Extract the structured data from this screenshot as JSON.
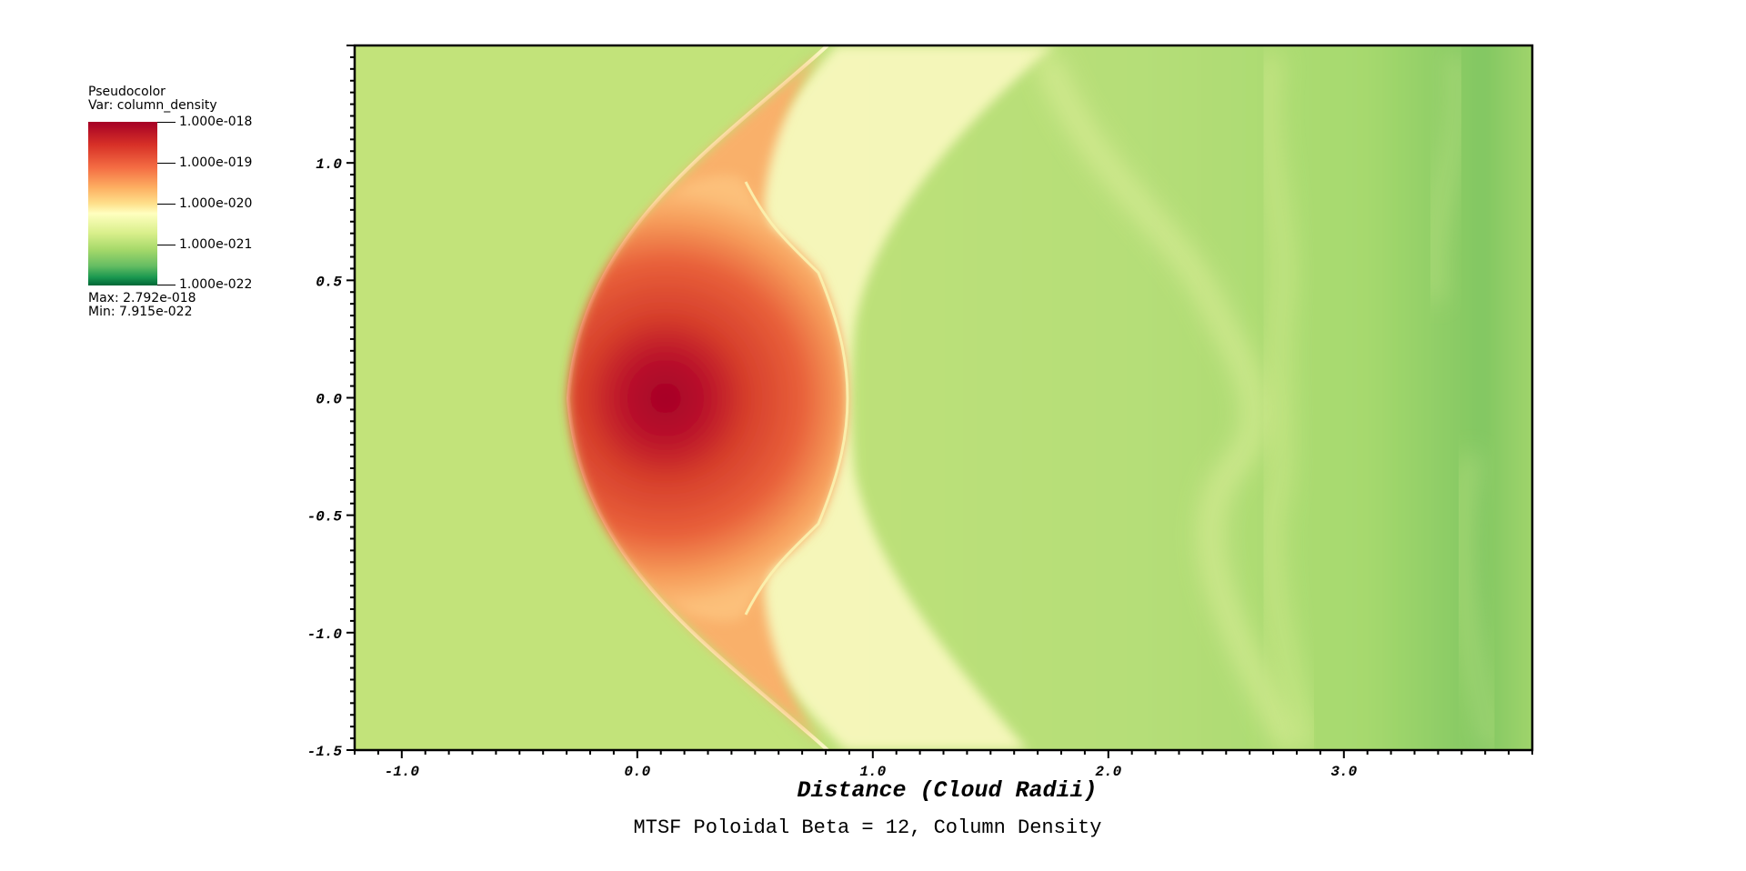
{
  "legend": {
    "plot_type": "Pseudocolor",
    "variable": "Var: column_density",
    "tick_labels": [
      "1.000e-018",
      "1.000e-019",
      "1.000e-020",
      "1.000e-021",
      "1.000e-022"
    ],
    "max_label": "Max:  2.792e-018",
    "min_label": "Min:  7.915e-022",
    "colors": [
      "#a50026",
      "#e34a33",
      "#fdae61",
      "#ffffbf",
      "#c2e37a",
      "#7dc462",
      "#006837"
    ]
  },
  "chart_data": {
    "type": "heatmap",
    "title": "MTSF Poloidal Beta = 12, Column Density",
    "xlabel": "Distance (Cloud Radii)",
    "ylabel": "",
    "xlim": [
      -1.2,
      3.8
    ],
    "ylim": [
      -1.5,
      1.5
    ],
    "x_ticks": [
      -1.0,
      0.0,
      1.0,
      2.0,
      3.0
    ],
    "x_tick_labels": [
      "-1.0",
      "0.0",
      "1.0",
      "2.0",
      "3.0"
    ],
    "y_ticks": [
      1.0,
      0.5,
      0.0,
      -0.5,
      -1.0,
      -1.5
    ],
    "y_tick_labels": [
      "1.0",
      "0.5",
      "0.0",
      "-0.5",
      "-1.0",
      "-1.5"
    ],
    "color_scale": "log",
    "value_range": [
      1e-22,
      1e-18
    ],
    "field_features": {
      "ambient_value": 3e-21,
      "cloud_core_center": [
        0.12,
        0.0
      ],
      "cloud_core_value": 2.792e-18,
      "bow_shock_apex_x": -0.28,
      "cloud_edge_x": 0.85,
      "wake_tail_x": 3.8
    },
    "colors": {
      "ambient": "#c2e37a",
      "core": "#a50026",
      "shell": "#fdae61",
      "shocked_gas": "#fbfbc0",
      "wake": "#9fd46e"
    }
  }
}
